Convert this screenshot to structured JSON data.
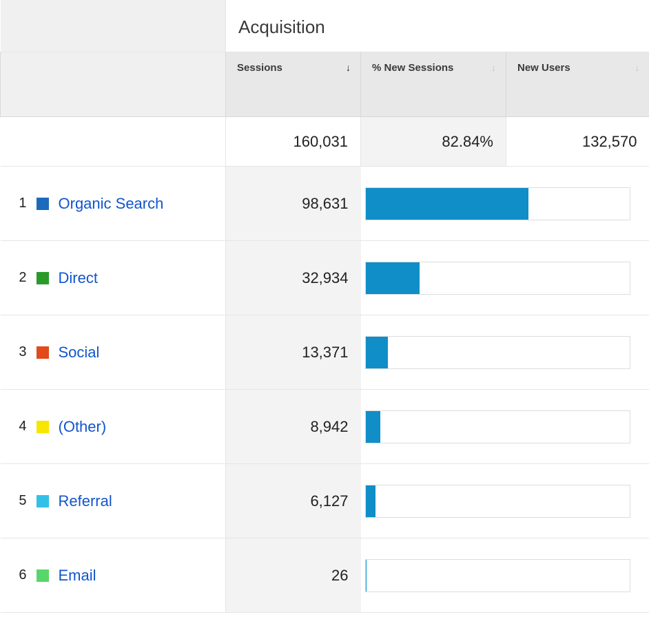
{
  "colors": {
    "link": "#1155cc",
    "bar_fill": "#0f8ec7",
    "bar_border": "#dcdcdc",
    "header_bg": "#e8e8e8",
    "header_left_bg": "#f0f0f0",
    "shade_bg": "#f3f3f3",
    "border": "#e5e5e5",
    "sort_active": "#212121",
    "sort_inactive": "#c6c6c6"
  },
  "header": {
    "group_label": "Acquisition",
    "columns": {
      "sessions": {
        "label": "Sessions",
        "sort_active": true
      },
      "pct_new": {
        "label": "% New Sessions",
        "sort_active": false
      },
      "new_users": {
        "label": "New Users",
        "sort_active": false
      }
    }
  },
  "summary": {
    "sessions": "160,031",
    "pct_new": "82.84%",
    "new_users": "132,570"
  },
  "bar_max_sessions": 160031,
  "rows": [
    {
      "index": "1",
      "label": "Organic Search",
      "swatch": "#1c6bbb",
      "sessions_text": "98,631",
      "sessions_value": 98631
    },
    {
      "index": "2",
      "label": "Direct",
      "swatch": "#2a9b2a",
      "sessions_text": "32,934",
      "sessions_value": 32934
    },
    {
      "index": "3",
      "label": "Social",
      "swatch": "#e24a1a",
      "sessions_text": "13,371",
      "sessions_value": 13371
    },
    {
      "index": "4",
      "label": "(Other)",
      "swatch": "#f6e600",
      "sessions_text": "8,942",
      "sessions_value": 8942
    },
    {
      "index": "5",
      "label": "Referral",
      "swatch": "#33c0e6",
      "sessions_text": "6,127",
      "sessions_value": 6127
    },
    {
      "index": "6",
      "label": "Email",
      "swatch": "#57d76a",
      "sessions_text": "26",
      "sessions_value": 26
    }
  ]
}
